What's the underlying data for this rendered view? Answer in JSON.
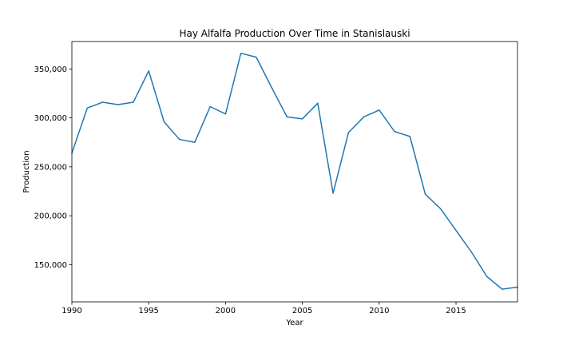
{
  "chart_data": {
    "type": "line",
    "title": "Hay Alfalfa Production Over Time in Stanislauski",
    "xlabel": "Year",
    "ylabel": "Production",
    "xlim": [
      1990,
      2019
    ],
    "ylim": [
      112000,
      378000
    ],
    "xticks": [
      1990,
      1995,
      2000,
      2005,
      2010,
      2015
    ],
    "xtick_labels": [
      "1990",
      "1995",
      "2000",
      "2005",
      "2010",
      "2015"
    ],
    "yticks": [
      150000,
      200000,
      250000,
      300000,
      350000
    ],
    "ytick_labels": [
      "150,000",
      "200,000",
      "250,000",
      "300,000",
      "350,000"
    ],
    "grid": false,
    "line_color": "#1f77b4",
    "series": [
      {
        "x": [
          1990,
          1991,
          1992,
          1993,
          1994,
          1995,
          1996,
          1997,
          1998,
          1999,
          2000,
          2001,
          2002,
          2003,
          2004,
          2005,
          2006,
          2007,
          2008,
          2009,
          2010,
          2011,
          2012,
          2013,
          2014,
          2015,
          2016,
          2017,
          2018,
          2019
        ],
        "y": [
          264000,
          310000,
          316000,
          313500,
          316000,
          348000,
          296000,
          278000,
          275000,
          311500,
          304000,
          366000,
          362000,
          331000,
          301000,
          299000,
          315000,
          223000,
          285000,
          301000,
          308000,
          286000,
          281000,
          222000,
          207000,
          185000,
          163000,
          138000,
          125000,
          127000
        ]
      }
    ]
  }
}
